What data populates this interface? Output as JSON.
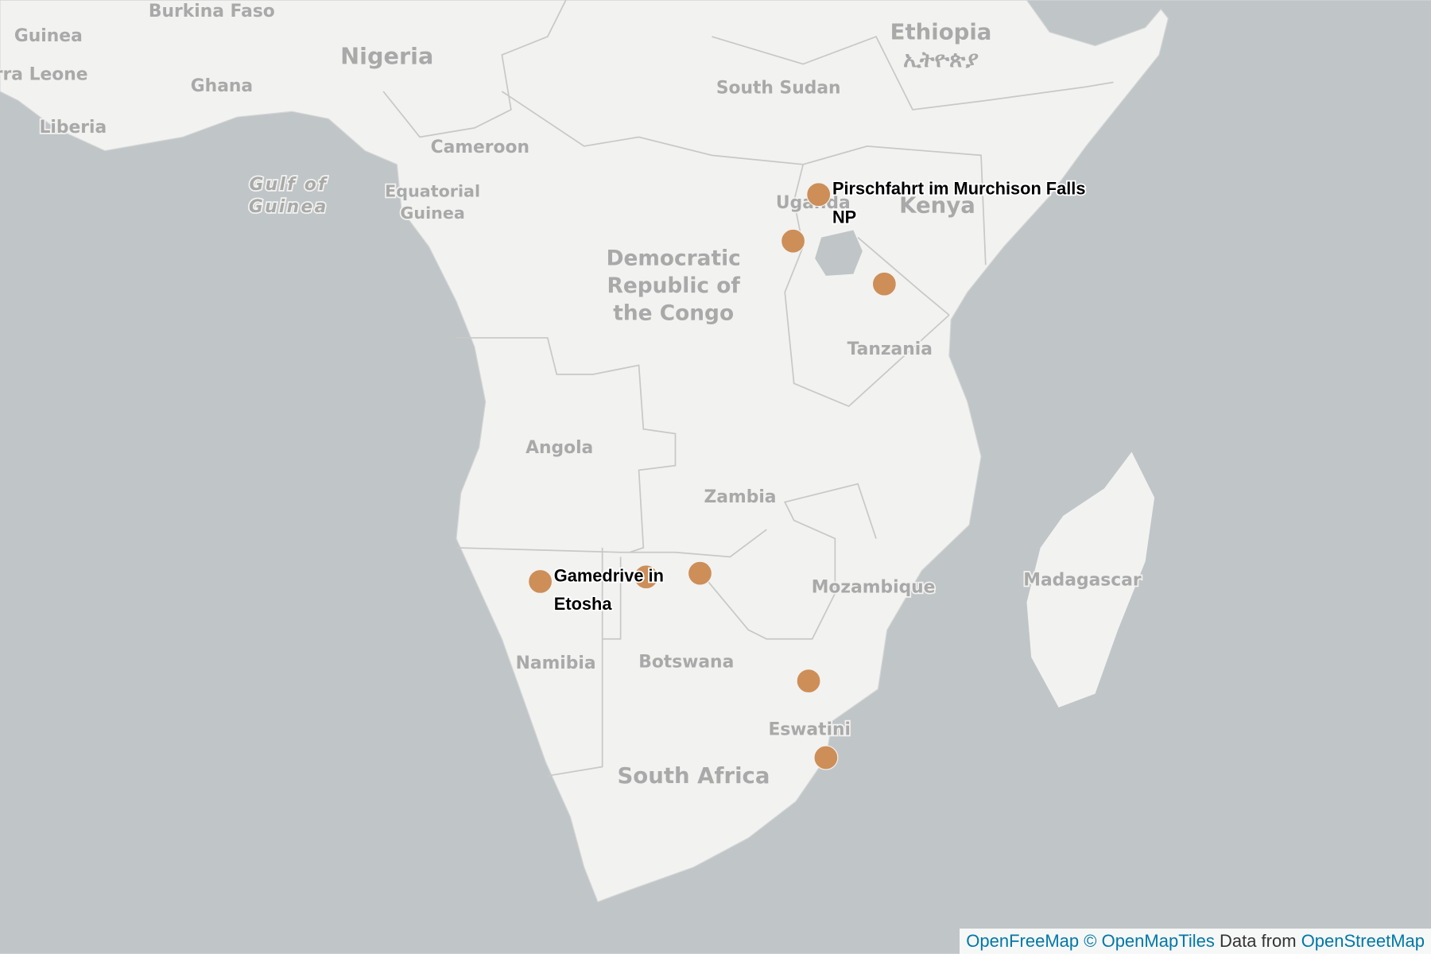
{
  "map": {
    "places": [
      {
        "lines": [
          "Burkina Faso"
        ]
      },
      {
        "lines": [
          "Guinea"
        ]
      },
      {
        "lines": [
          "rra Leone"
        ]
      },
      {
        "lines": [
          "Liberia"
        ]
      },
      {
        "lines": [
          "Ghana"
        ]
      },
      {
        "lines": [
          "Nigeria"
        ]
      },
      {
        "lines": [
          "Cameroon"
        ]
      },
      {
        "lines": [
          "Equatorial",
          "Guinea"
        ]
      },
      {
        "lines": [
          "Gulf of",
          "Guinea"
        ]
      },
      {
        "lines": [
          "South Sudan"
        ]
      },
      {
        "lines": [
          "Ethiopia",
          "ኢትዮጵያ"
        ]
      },
      {
        "lines": [
          "Uganda"
        ]
      },
      {
        "lines": [
          "Kenya"
        ]
      },
      {
        "lines": [
          "Democratic",
          "Republic of",
          "the Congo"
        ]
      },
      {
        "lines": [
          "Tanzania"
        ]
      },
      {
        "lines": [
          "Angola"
        ]
      },
      {
        "lines": [
          "Zambia"
        ]
      },
      {
        "lines": [
          "Mozambique"
        ]
      },
      {
        "lines": [
          "Madagascar"
        ]
      },
      {
        "lines": [
          "Namibia"
        ]
      },
      {
        "lines": [
          "Botswana"
        ]
      },
      {
        "lines": [
          "Eswatini"
        ]
      },
      {
        "lines": [
          "South Africa"
        ]
      }
    ],
    "markers": [
      {
        "label": [
          "Pirschfahrt im Murchison Falls",
          "NP"
        ]
      },
      {
        "label": []
      },
      {
        "label": []
      },
      {
        "label": [
          "Gamedrive in",
          "Etosha"
        ]
      },
      {
        "label": []
      },
      {
        "label": []
      },
      {
        "label": []
      },
      {
        "label": []
      }
    ],
    "attribution": {
      "link1": "OpenFreeMap",
      "link2": "© OpenMapTiles",
      "text": "Data from",
      "link3": "OpenStreetMap"
    }
  }
}
